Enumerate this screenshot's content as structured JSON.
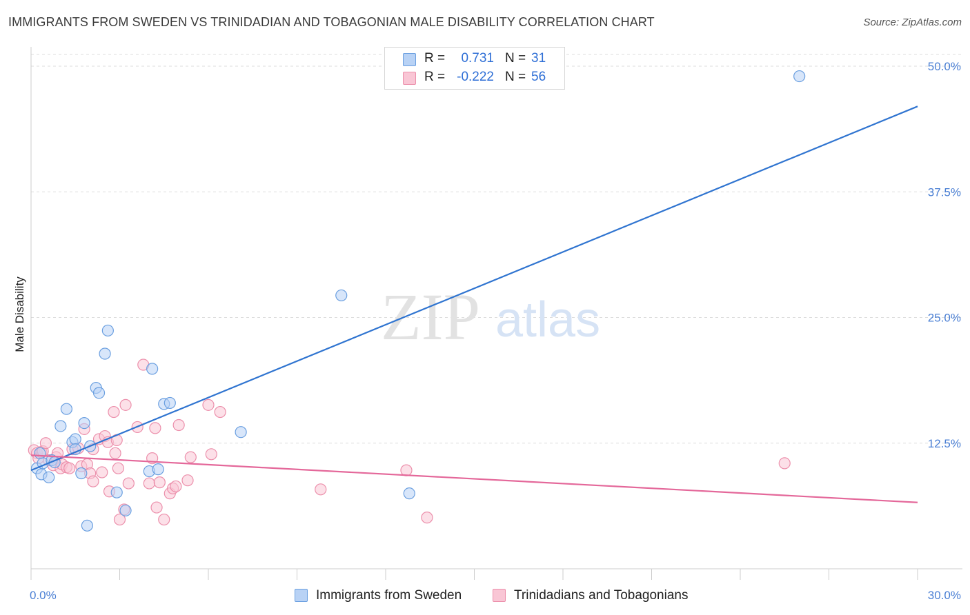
{
  "title": "IMMIGRANTS FROM SWEDEN VS TRINIDADIAN AND TOBAGONIAN MALE DISABILITY CORRELATION CHART",
  "source": "Source: ZipAtlas.com",
  "watermark": {
    "zip": "ZIP",
    "atlas": "atlas"
  },
  "stats": {
    "series1": {
      "r_label": "R =",
      "r_value": "0.731",
      "n_label": "N =",
      "n_value": "31"
    },
    "series2": {
      "r_label": "R =",
      "r_value": "-0.222",
      "n_label": "N =",
      "n_value": "56"
    }
  },
  "legend": {
    "series1": "Immigrants from Sweden",
    "series2": "Trinidadians and Tobagonians"
  },
  "colors": {
    "series1_fill": "#b8d2f5",
    "series1_stroke": "#6a9fe0",
    "series1_line": "#2f74d0",
    "series2_fill": "#f9c6d5",
    "series2_stroke": "#ec8fab",
    "series2_line": "#e4689a",
    "tick_text": "#4a7fd4",
    "grid": "#dddddd"
  },
  "chart_data": {
    "type": "scatter",
    "title": "IMMIGRANTS FROM SWEDEN VS TRINIDADIAN AND TOBAGONIAN MALE DISABILITY CORRELATION CHART",
    "xlabel": "",
    "ylabel": "Male Disability",
    "xlim": [
      0,
      30
    ],
    "ylim": [
      0,
      50
    ],
    "x_tick_labels": [
      {
        "value": 0,
        "label": "0.0%"
      },
      {
        "value": 30,
        "label": "30.0%"
      }
    ],
    "y_tick_labels": [
      {
        "value": 12.5,
        "label": "12.5%"
      },
      {
        "value": 25.0,
        "label": "25.0%"
      },
      {
        "value": 37.5,
        "label": "37.5%"
      },
      {
        "value": 50.0,
        "label": "50.0%"
      }
    ],
    "x_minor_ticks": [
      3,
      6,
      9,
      12,
      15,
      18,
      21,
      24,
      27,
      30
    ],
    "grid": true,
    "legend_position": "bottom-center",
    "series": [
      {
        "name": "Immigrants from Sweden",
        "color": "#6a9fe0",
        "trend": {
          "x": [
            0,
            30
          ],
          "y": [
            9.8,
            46.0
          ]
        },
        "points": [
          [
            0.2,
            10.0
          ],
          [
            0.35,
            9.4
          ],
          [
            0.4,
            10.5
          ],
          [
            0.6,
            9.1
          ],
          [
            0.7,
            10.8
          ],
          [
            1.0,
            14.2
          ],
          [
            1.2,
            15.9
          ],
          [
            1.4,
            12.6
          ],
          [
            1.5,
            12.9
          ],
          [
            1.5,
            11.9
          ],
          [
            1.7,
            9.5
          ],
          [
            1.8,
            14.5
          ],
          [
            1.9,
            4.3
          ],
          [
            2.0,
            12.2
          ],
          [
            2.2,
            18.0
          ],
          [
            2.3,
            17.5
          ],
          [
            2.5,
            21.4
          ],
          [
            2.6,
            23.7
          ],
          [
            2.9,
            7.6
          ],
          [
            3.2,
            5.8
          ],
          [
            4.0,
            9.7
          ],
          [
            4.1,
            19.9
          ],
          [
            4.3,
            9.9
          ],
          [
            4.5,
            16.4
          ],
          [
            4.7,
            16.5
          ],
          [
            7.1,
            13.6
          ],
          [
            10.5,
            27.2
          ],
          [
            12.8,
            7.5
          ],
          [
            26.0,
            49.0
          ],
          [
            0.3,
            11.5
          ],
          [
            0.8,
            10.6
          ]
        ]
      },
      {
        "name": "Trinidadians and Tobagonians",
        "color": "#ec8fab",
        "trend": {
          "x": [
            0,
            30
          ],
          "y": [
            11.3,
            6.6
          ]
        },
        "points": [
          [
            0.1,
            11.8
          ],
          [
            0.2,
            11.5
          ],
          [
            0.25,
            11.0
          ],
          [
            0.35,
            11.6
          ],
          [
            0.4,
            11.7
          ],
          [
            0.5,
            12.5
          ],
          [
            0.6,
            10.8
          ],
          [
            0.75,
            10.3
          ],
          [
            0.85,
            11.1
          ],
          [
            0.9,
            11.5
          ],
          [
            1.0,
            10.0
          ],
          [
            1.05,
            10.4
          ],
          [
            1.2,
            10.1
          ],
          [
            1.3,
            10.0
          ],
          [
            1.4,
            11.9
          ],
          [
            1.6,
            12.0
          ],
          [
            1.7,
            10.2
          ],
          [
            1.8,
            13.9
          ],
          [
            1.9,
            10.4
          ],
          [
            2.0,
            9.5
          ],
          [
            2.1,
            11.9
          ],
          [
            2.1,
            8.7
          ],
          [
            2.3,
            12.9
          ],
          [
            2.4,
            9.6
          ],
          [
            2.5,
            13.2
          ],
          [
            2.6,
            12.6
          ],
          [
            2.65,
            7.7
          ],
          [
            2.8,
            15.6
          ],
          [
            2.85,
            11.5
          ],
          [
            2.9,
            12.8
          ],
          [
            2.95,
            10.0
          ],
          [
            3.0,
            4.9
          ],
          [
            3.15,
            5.9
          ],
          [
            3.2,
            16.3
          ],
          [
            3.3,
            8.5
          ],
          [
            3.6,
            14.1
          ],
          [
            3.8,
            20.3
          ],
          [
            4.0,
            8.5
          ],
          [
            4.1,
            11.0
          ],
          [
            4.2,
            14.0
          ],
          [
            4.25,
            6.1
          ],
          [
            4.35,
            8.6
          ],
          [
            4.5,
            4.9
          ],
          [
            4.7,
            7.5
          ],
          [
            4.8,
            8.0
          ],
          [
            4.9,
            8.2
          ],
          [
            5.0,
            14.3
          ],
          [
            5.3,
            8.8
          ],
          [
            5.4,
            11.1
          ],
          [
            6.0,
            16.3
          ],
          [
            6.1,
            11.4
          ],
          [
            6.4,
            15.6
          ],
          [
            9.8,
            7.9
          ],
          [
            12.7,
            9.8
          ],
          [
            13.4,
            5.1
          ],
          [
            25.5,
            10.5
          ]
        ]
      }
    ]
  }
}
